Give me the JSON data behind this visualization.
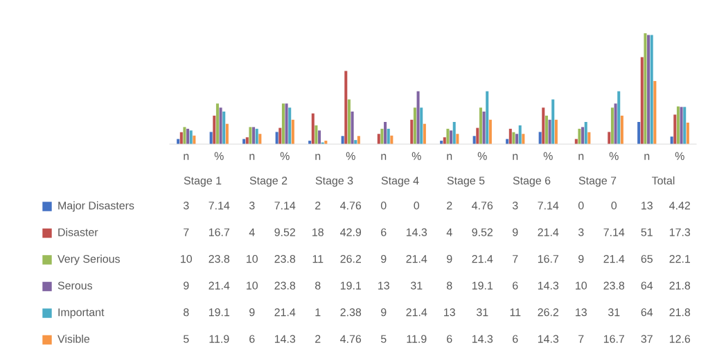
{
  "chart_data": {
    "type": "bar",
    "categories": [
      "n",
      "%",
      "n",
      "%",
      "n",
      "%",
      "n",
      "%",
      "n",
      "%",
      "n",
      "%",
      "n",
      "%",
      "n",
      "%"
    ],
    "annotations": [
      "Stage 1",
      "Stage 2",
      "Stage 3",
      "Stage 4",
      "Stage 5",
      "Stage 6",
      "Stage 7",
      "Total"
    ],
    "series": [
      {
        "name": "Major Disasters",
        "color": "#4472c4",
        "values": [
          3,
          7.14,
          3,
          7.14,
          2,
          4.76,
          0,
          0,
          2,
          4.76,
          3,
          7.14,
          0,
          0,
          13,
          4.42
        ]
      },
      {
        "name": "Disaster",
        "color": "#c0504d",
        "values": [
          7,
          16.7,
          4,
          9.52,
          18,
          42.9,
          6,
          14.3,
          4,
          9.52,
          9,
          21.4,
          3,
          7.14,
          51,
          17.3
        ]
      },
      {
        "name": "Very Serious",
        "color": "#9bbb59",
        "values": [
          10,
          23.8,
          10,
          23.8,
          11,
          26.2,
          9,
          21.4,
          9,
          21.4,
          7,
          16.7,
          9,
          21.4,
          65,
          22.1
        ]
      },
      {
        "name": "Serous",
        "color": "#8064a2",
        "values": [
          9,
          21.4,
          10,
          23.8,
          8,
          19.1,
          13,
          31,
          8,
          19.1,
          6,
          14.3,
          10,
          23.8,
          64,
          21.8
        ]
      },
      {
        "name": "Important",
        "color": "#4bacc6",
        "values": [
          8,
          19.1,
          9,
          21.4,
          1,
          2.38,
          9,
          21.4,
          13,
          31,
          11,
          26.2,
          13,
          31,
          64,
          21.8
        ]
      },
      {
        "name": "Visible",
        "color": "#f79646",
        "values": [
          5,
          11.9,
          6,
          14.3,
          2,
          4.76,
          5,
          11.9,
          6,
          14.3,
          6,
          14.3,
          7,
          16.7,
          37,
          12.6
        ]
      }
    ],
    "data_labels": true,
    "legend": "bottom",
    "grid": false
  }
}
